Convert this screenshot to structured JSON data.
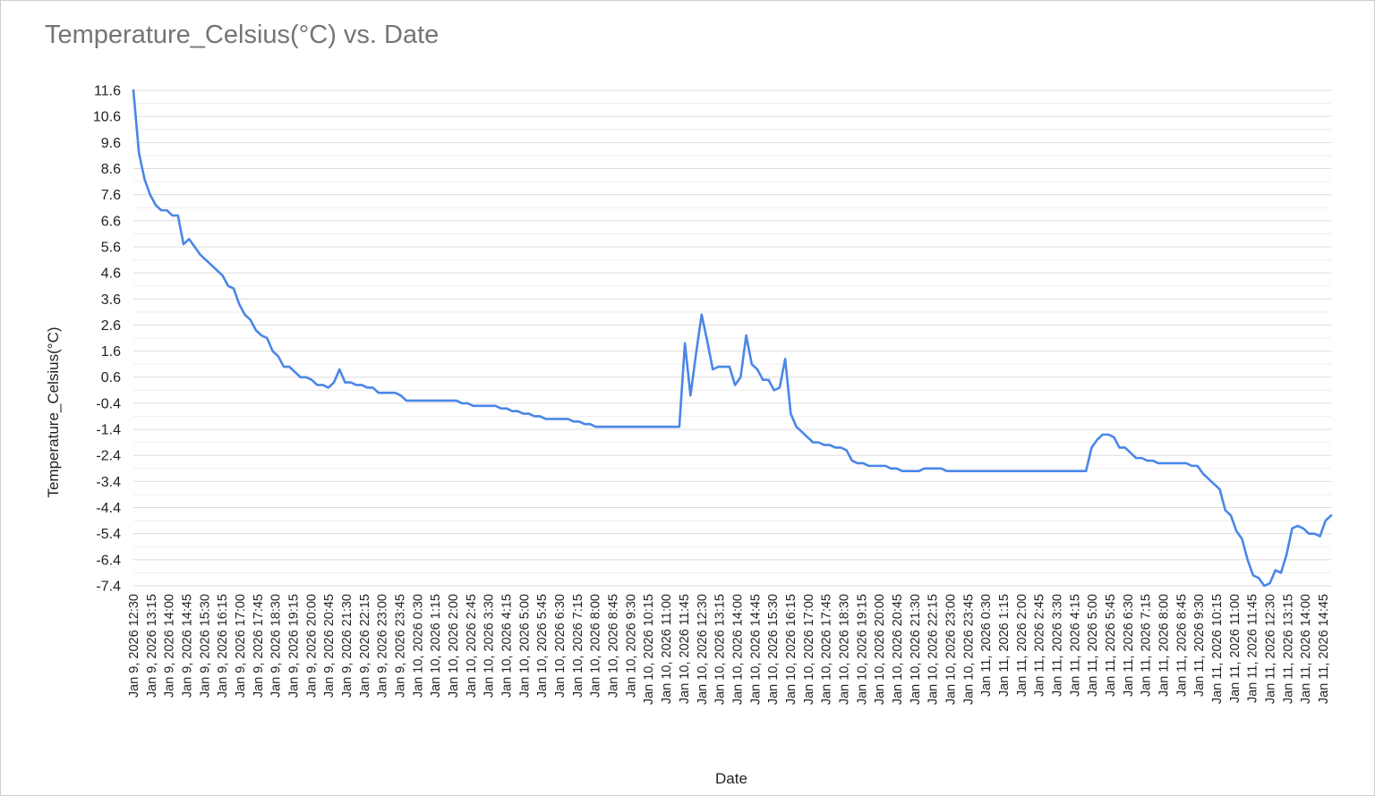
{
  "chart_data": {
    "type": "line",
    "title": "Temperature_Celsius(°C) vs. Date",
    "xlabel": "Date",
    "ylabel": "Temperature_Celsius(°C)",
    "ylim": [
      -7.4,
      11.6
    ],
    "y_ticks": [
      "11.6",
      "10.6",
      "9.6",
      "8.6",
      "7.6",
      "6.6",
      "5.6",
      "4.6",
      "3.6",
      "2.6",
      "1.6",
      "0.6",
      "-0.4",
      "-1.4",
      "-2.4",
      "-3.4",
      "-4.4",
      "-5.4",
      "-6.4",
      "-7.4"
    ],
    "x_ticks": [
      "Jan 9, 2026 12:30",
      "Jan 9, 2026 13:15",
      "Jan 9, 2026 14:00",
      "Jan 9, 2026 14:45",
      "Jan 9, 2026 15:30",
      "Jan 9, 2026 16:15",
      "Jan 9, 2026 17:00",
      "Jan 9, 2026 17:45",
      "Jan 9, 2026 18:30",
      "Jan 9, 2026 19:15",
      "Jan 9, 2026 20:00",
      "Jan 9, 2026 20:45",
      "Jan 9, 2026 21:30",
      "Jan 9, 2026 22:15",
      "Jan 9, 2026 23:00",
      "Jan 9, 2026 23:45",
      "Jan 10, 2026 0:30",
      "Jan 10, 2026 1:15",
      "Jan 10, 2026 2:00",
      "Jan 10, 2026 2:45",
      "Jan 10, 2026 3:30",
      "Jan 10, 2026 4:15",
      "Jan 10, 2026 5:00",
      "Jan 10, 2026 5:45",
      "Jan 10, 2026 6:30",
      "Jan 10, 2026 7:15",
      "Jan 10, 2026 8:00",
      "Jan 10, 2026 8:45",
      "Jan 10, 2026 9:30",
      "Jan 10, 2026 10:15",
      "Jan 10, 2026 11:00",
      "Jan 10, 2026 11:45",
      "Jan 10, 2026 12:30",
      "Jan 10, 2026 13:15",
      "Jan 10, 2026 14:00",
      "Jan 10, 2026 14:45",
      "Jan 10, 2026 15:30",
      "Jan 10, 2026 16:15",
      "Jan 10, 2026 17:00",
      "Jan 10, 2026 17:45",
      "Jan 10, 2026 18:30",
      "Jan 10, 2026 19:15",
      "Jan 10, 2026 20:00",
      "Jan 10, 2026 20:45",
      "Jan 10, 2026 21:30",
      "Jan 10, 2026 22:15",
      "Jan 10, 2026 23:00",
      "Jan 10, 2026 23:45",
      "Jan 11, 2026 0:30",
      "Jan 11, 2026 1:15",
      "Jan 11, 2026 2:00",
      "Jan 11, 2026 2:45",
      "Jan 11, 2026 3:30",
      "Jan 11, 2026 4:15",
      "Jan 11, 2026 5:00",
      "Jan 11, 2026 5:45",
      "Jan 11, 2026 6:30",
      "Jan 11, 2026 7:15",
      "Jan 11, 2026 8:00",
      "Jan 11, 2026 8:45",
      "Jan 11, 2026 9:30",
      "Jan 11, 2026 10:15",
      "Jan 11, 2026 11:00",
      "Jan 11, 2026 11:45",
      "Jan 11, 2026 12:30",
      "Jan 11, 2026 13:15",
      "Jan 11, 2026 14:00",
      "Jan 11, 2026 14:45"
    ],
    "x_interval_minutes": 15,
    "series": [
      {
        "values": [
          11.6,
          9.2,
          8.2,
          7.6,
          7.2,
          7.0,
          7.0,
          6.8,
          6.8,
          5.7,
          5.9,
          5.6,
          5.3,
          5.1,
          4.9,
          4.7,
          4.5,
          4.1,
          4.0,
          3.4,
          3.0,
          2.8,
          2.4,
          2.2,
          2.1,
          1.6,
          1.4,
          1.0,
          1.0,
          0.8,
          0.6,
          0.6,
          0.5,
          0.3,
          0.3,
          0.2,
          0.4,
          0.9,
          0.4,
          0.4,
          0.3,
          0.3,
          0.2,
          0.2,
          0.0,
          0.0,
          0.0,
          0.0,
          -0.1,
          -0.3,
          -0.3,
          -0.3,
          -0.3,
          -0.3,
          -0.3,
          -0.3,
          -0.3,
          -0.3,
          -0.3,
          -0.4,
          -0.4,
          -0.5,
          -0.5,
          -0.5,
          -0.5,
          -0.5,
          -0.6,
          -0.6,
          -0.7,
          -0.7,
          -0.8,
          -0.8,
          -0.9,
          -0.9,
          -1.0,
          -1.0,
          -1.0,
          -1.0,
          -1.0,
          -1.1,
          -1.1,
          -1.2,
          -1.2,
          -1.3,
          -1.3,
          -1.3,
          -1.3,
          -1.3,
          -1.3,
          -1.3,
          -1.3,
          -1.3,
          -1.3,
          -1.3,
          -1.3,
          -1.3,
          -1.3,
          -1.3,
          -1.3,
          1.9,
          -0.1,
          1.5,
          3.0,
          2.0,
          0.9,
          1.0,
          1.0,
          1.0,
          0.3,
          0.6,
          2.2,
          1.1,
          0.9,
          0.5,
          0.5,
          0.1,
          0.2,
          1.3,
          -0.8,
          -1.3,
          -1.5,
          -1.7,
          -1.9,
          -1.9,
          -2.0,
          -2.0,
          -2.1,
          -2.1,
          -2.2,
          -2.6,
          -2.7,
          -2.7,
          -2.8,
          -2.8,
          -2.8,
          -2.8,
          -2.9,
          -2.9,
          -3.0,
          -3.0,
          -3.0,
          -3.0,
          -2.9,
          -2.9,
          -2.9,
          -2.9,
          -3.0,
          -3.0,
          -3.0,
          -3.0,
          -3.0,
          -3.0,
          -3.0,
          -3.0,
          -3.0,
          -3.0,
          -3.0,
          -3.0,
          -3.0,
          -3.0,
          -3.0,
          -3.0,
          -3.0,
          -3.0,
          -3.0,
          -3.0,
          -3.0,
          -3.0,
          -3.0,
          -3.0,
          -3.0,
          -3.0,
          -2.1,
          -1.8,
          -1.6,
          -1.6,
          -1.7,
          -2.1,
          -2.1,
          -2.3,
          -2.5,
          -2.5,
          -2.6,
          -2.6,
          -2.7,
          -2.7,
          -2.7,
          -2.7,
          -2.7,
          -2.7,
          -2.8,
          -2.8,
          -3.1,
          -3.3,
          -3.5,
          -3.7,
          -4.5,
          -4.7,
          -5.3,
          -5.6,
          -6.4,
          -7.0,
          -7.1,
          -7.4,
          -7.3,
          -6.8,
          -6.9,
          -6.2,
          -5.2,
          -5.1,
          -5.2,
          -5.4,
          -5.4,
          -5.5,
          -4.9,
          -4.7
        ]
      }
    ],
    "grid": true,
    "legend": "none",
    "line_color": "#4a86e8"
  }
}
